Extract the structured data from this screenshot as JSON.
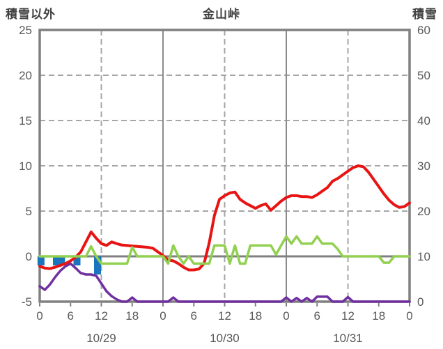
{
  "title": "金山峠",
  "left_axis_title": "積雪以外",
  "right_axis_title": "積雪",
  "colors": {
    "red_line": "#e81414",
    "green_line": "#92d050",
    "purple_line": "#7030a0",
    "blue_bar": "#1b75bc",
    "border": "#808080",
    "gridline": "#a6a6a6",
    "day_line": "#8c8c8c",
    "zero_line": "#808080",
    "text": "#595959"
  },
  "chart_data": {
    "type": "line",
    "title": "金山峠",
    "x_unit": "hours (0-72, hourly over 3 days)",
    "left_axis": {
      "min": -5,
      "max": 25,
      "tick_values": [
        25,
        20,
        15,
        10,
        5,
        0,
        -5
      ],
      "tick_labels": [
        "25",
        "20",
        "15",
        "10",
        "5",
        "0",
        "-5"
      ]
    },
    "right_axis": {
      "min": 0,
      "max": 60,
      "tick_values": [
        60,
        50,
        40,
        30,
        20,
        10,
        0
      ],
      "tick_labels": [
        "60",
        "50",
        "40",
        "30",
        "20",
        "10",
        "0"
      ]
    },
    "x_ticks": {
      "hours": [
        0,
        6,
        12,
        18,
        24,
        30,
        36,
        42,
        48,
        54,
        60,
        66,
        72
      ],
      "labels": [
        "0",
        "6",
        "12",
        "18",
        "0",
        "6",
        "12",
        "18",
        "0",
        "6",
        "12",
        "18",
        "0"
      ]
    },
    "date_labels": [
      {
        "label": "10/29",
        "hour": 12
      },
      {
        "label": "10/30",
        "hour": 36
      },
      {
        "label": "10/31",
        "hour": 60
      }
    ],
    "gridlines": {
      "horizontal_dashed_at": [
        20,
        15,
        10,
        5
      ],
      "vertical_dashed_at_hours": [
        12,
        36,
        60
      ],
      "vertical_solid_at_hours": [
        24,
        48
      ],
      "zero_line": 0
    },
    "series": [
      {
        "name": "purple-line",
        "axis": "left",
        "color": "#7030a0",
        "width": 3.5,
        "values": [
          -3.3,
          -3.7,
          -3.1,
          -2.3,
          -1.6,
          -1.1,
          -0.8,
          -1.3,
          -1.85,
          -2.0,
          -2.0,
          -2.15,
          -3.0,
          -3.85,
          -4.4,
          -4.75,
          -5,
          -5,
          -4.55,
          -5,
          -5,
          -5,
          -5,
          -5,
          -5,
          -5,
          -4.55,
          -5,
          -5,
          -5,
          -5,
          -5,
          -5,
          -5,
          -5,
          -5,
          -5,
          -5,
          -5,
          -5,
          -5,
          -5,
          -5,
          -5,
          -5,
          -5,
          -5,
          -5,
          -4.55,
          -5,
          -4.6,
          -5,
          -4.6,
          -5,
          -4.45,
          -4.45,
          -4.45,
          -5,
          -5,
          -5,
          -4.5,
          -5,
          -5,
          -5,
          -5,
          -5,
          -5,
          -5,
          -5,
          -5,
          -5,
          -5,
          -5
        ]
      },
      {
        "name": "red-line",
        "axis": "left",
        "color": "#e81414",
        "width": 4,
        "values": [
          -1.1,
          -1.3,
          -1.35,
          -1.2,
          -1.0,
          -0.8,
          -0.5,
          -0.1,
          0.5,
          1.6,
          2.7,
          2.0,
          1.4,
          1.2,
          1.6,
          1.4,
          1.25,
          1.2,
          1.15,
          1.1,
          1.05,
          1.0,
          0.9,
          0.5,
          0.1,
          -0.4,
          -0.5,
          -0.8,
          -1.2,
          -1.5,
          -1.5,
          -1.4,
          -0.8,
          1.5,
          4.5,
          6.3,
          6.7,
          7.0,
          7.1,
          6.3,
          5.9,
          5.6,
          5.3,
          5.6,
          5.8,
          5.1,
          5.6,
          6.1,
          6.5,
          6.7,
          6.7,
          6.6,
          6.6,
          6.5,
          6.8,
          7.2,
          7.6,
          8.3,
          8.6,
          9.0,
          9.4,
          9.8,
          10.0,
          9.9,
          9.3,
          8.5,
          7.7,
          6.9,
          6.2,
          5.7,
          5.4,
          5.5,
          5.9
        ]
      },
      {
        "name": "green-line",
        "axis": "left",
        "color": "#92d050",
        "width": 3.5,
        "values": [
          0,
          0,
          0,
          0,
          0,
          0,
          0,
          0,
          0,
          0,
          1.1,
          0,
          -0.8,
          -0.8,
          -0.8,
          -0.8,
          -0.8,
          -0.8,
          1.0,
          0,
          0,
          0,
          0,
          0,
          0,
          -0.8,
          1.2,
          0,
          -0.8,
          0,
          -0.8,
          -0.8,
          -0.8,
          -0.8,
          1.2,
          1.2,
          1.2,
          -0.8,
          1.2,
          -0.8,
          -0.8,
          1.2,
          1.2,
          1.2,
          1.2,
          1.2,
          0.2,
          1.2,
          2.2,
          1.4,
          2.2,
          1.4,
          1.4,
          1.4,
          2.2,
          1.4,
          1.4,
          1.4,
          0.8,
          0,
          0,
          0,
          0,
          0,
          0,
          0,
          0,
          -0.7,
          -0.7,
          0,
          0,
          0,
          0
        ]
      }
    ],
    "bars": {
      "name": "blue-bars",
      "color": "#1b75bc",
      "points": [
        {
          "hour": 1,
          "value": -1
        },
        {
          "hour": 4,
          "value": -1
        },
        {
          "hour": 5,
          "value": -1
        },
        {
          "hour": 8,
          "value": -1
        },
        {
          "hour": 12,
          "value": -2
        }
      ]
    }
  }
}
